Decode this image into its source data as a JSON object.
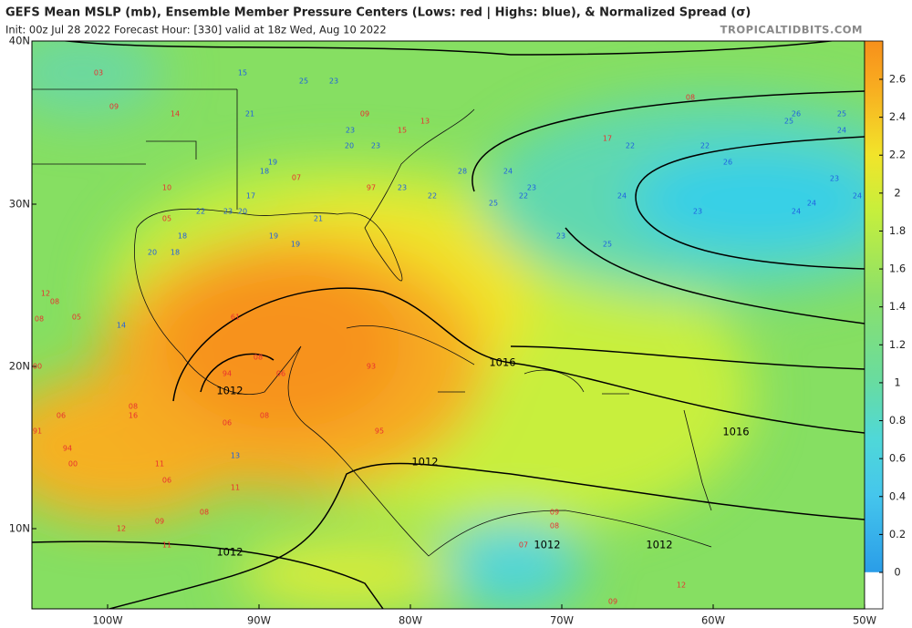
{
  "header": {
    "title": "GEFS Mean MSLP (mb), Ensemble Member Pressure Centers (Lows: red | Highs: blue), & Normalized Spread (σ)",
    "subtitle": "Init: 00z Jul 28 2022   Forecast Hour: [330]   valid at 18z Wed, Aug 10 2022",
    "credit": "TROPICALTIDBITS.COM"
  },
  "map": {
    "lat_labels": [
      "40N",
      "30N",
      "20N",
      "10N"
    ],
    "lon_labels": [
      "100W",
      "90W",
      "80W",
      "70W",
      "60W",
      "50W"
    ],
    "colorbar_ticks": [
      0,
      0.2,
      0.4,
      0.6,
      0.8,
      1,
      1.2,
      1.4,
      1.6,
      1.8,
      2,
      2.2,
      2.4,
      2.6
    ],
    "isobar_labels": [
      "1016",
      "1016",
      "1012",
      "1012",
      "1012",
      "1012",
      "1012"
    ],
    "lows": [
      "03",
      "09",
      "14",
      "10",
      "05",
      "12",
      "08",
      "05",
      "08",
      "00",
      "06",
      "91",
      "94",
      "00",
      "11",
      "06",
      "11",
      "08",
      "09",
      "12",
      "11",
      "61",
      "94",
      "06",
      "08",
      "06",
      "08",
      "95",
      "93",
      "07",
      "97",
      "13",
      "15",
      "08",
      "17",
      "09",
      "08",
      "16",
      "12",
      "09",
      "07",
      "08",
      "09"
    ],
    "highs": [
      "15",
      "25",
      "23",
      "21",
      "23",
      "20",
      "23",
      "19",
      "18",
      "17",
      "22",
      "23",
      "20",
      "21",
      "18",
      "19",
      "19",
      "20",
      "18",
      "14",
      "23",
      "22",
      "28",
      "24",
      "25",
      "22",
      "23",
      "22",
      "24",
      "23",
      "25",
      "22",
      "26",
      "25",
      "26",
      "25",
      "24",
      "23",
      "23",
      "24",
      "24",
      "24",
      "13"
    ]
  }
}
